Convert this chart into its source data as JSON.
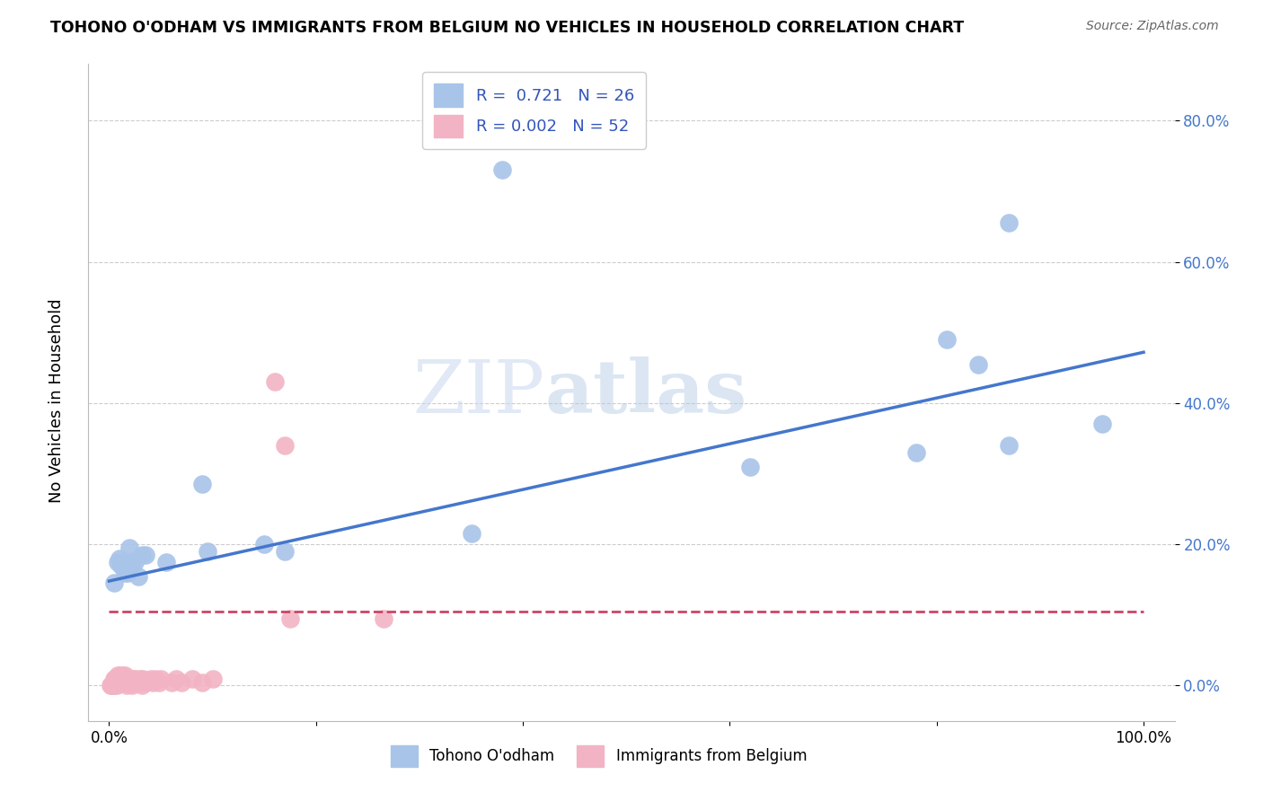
{
  "title": "TOHONO O'ODHAM VS IMMIGRANTS FROM BELGIUM NO VEHICLES IN HOUSEHOLD CORRELATION CHART",
  "source": "Source: ZipAtlas.com",
  "ylabel": "No Vehicles in Household",
  "blue_R": "0.721",
  "blue_N": "26",
  "pink_R": "0.002",
  "pink_N": "52",
  "blue_color": "#a8c4e8",
  "pink_color": "#f2b4c4",
  "blue_line_color": "#4477cc",
  "pink_line_color": "#cc4466",
  "legend_text_color": "#3355bb",
  "watermark_zip": "ZIP",
  "watermark_atlas": "atlas",
  "y_ticks": [
    0.0,
    0.2,
    0.4,
    0.6,
    0.8
  ],
  "y_tick_labels": [
    "0.0%",
    "20.0%",
    "40.0%",
    "60.0%",
    "80.0%"
  ],
  "x_ticks": [
    0.0,
    0.2,
    0.4,
    0.6,
    0.8,
    1.0
  ],
  "x_tick_labels": [
    "0.0%",
    "",
    "",
    "",
    "",
    "100.0%"
  ],
  "blue_scatter_x": [
    0.005,
    0.008,
    0.01,
    0.012,
    0.015,
    0.018,
    0.02,
    0.022,
    0.025,
    0.028,
    0.032,
    0.035,
    0.055,
    0.09,
    0.095,
    0.15,
    0.17,
    0.35,
    0.62,
    0.78,
    0.81,
    0.84,
    0.87,
    0.87,
    0.96,
    0.38
  ],
  "blue_scatter_y": [
    0.145,
    0.175,
    0.18,
    0.17,
    0.16,
    0.16,
    0.195,
    0.175,
    0.175,
    0.155,
    0.185,
    0.185,
    0.175,
    0.285,
    0.19,
    0.2,
    0.19,
    0.215,
    0.31,
    0.33,
    0.49,
    0.455,
    0.34,
    0.655,
    0.37,
    0.73
  ],
  "pink_scatter_x": [
    0.001,
    0.002,
    0.003,
    0.004,
    0.005,
    0.005,
    0.006,
    0.006,
    0.007,
    0.007,
    0.008,
    0.008,
    0.009,
    0.01,
    0.01,
    0.011,
    0.012,
    0.013,
    0.013,
    0.014,
    0.015,
    0.015,
    0.016,
    0.017,
    0.018,
    0.019,
    0.02,
    0.021,
    0.022,
    0.023,
    0.025,
    0.026,
    0.028,
    0.03,
    0.032,
    0.033,
    0.035,
    0.04,
    0.042,
    0.045,
    0.048,
    0.05,
    0.06,
    0.065,
    0.07,
    0.08,
    0.09,
    0.1,
    0.16,
    0.17,
    0.175,
    0.265
  ],
  "pink_scatter_y": [
    0.0,
    0.0,
    0.0,
    0.0,
    0.0,
    0.01,
    0.005,
    0.01,
    0.0,
    0.01,
    0.005,
    0.015,
    0.01,
    0.005,
    0.015,
    0.005,
    0.01,
    0.005,
    0.015,
    0.01,
    0.005,
    0.015,
    0.01,
    0.0,
    0.005,
    0.01,
    0.005,
    0.01,
    0.0,
    0.01,
    0.005,
    0.01,
    0.005,
    0.01,
    0.0,
    0.01,
    0.005,
    0.01,
    0.005,
    0.01,
    0.005,
    0.01,
    0.005,
    0.01,
    0.005,
    0.01,
    0.005,
    0.01,
    0.43,
    0.34,
    0.095,
    0.095
  ],
  "blue_line_x0": 0.0,
  "blue_line_y0": 0.148,
  "blue_line_x1": 1.0,
  "blue_line_y1": 0.472,
  "pink_line_x0": 0.0,
  "pink_line_y0": 0.105,
  "pink_line_x1": 1.0,
  "pink_line_y1": 0.105
}
